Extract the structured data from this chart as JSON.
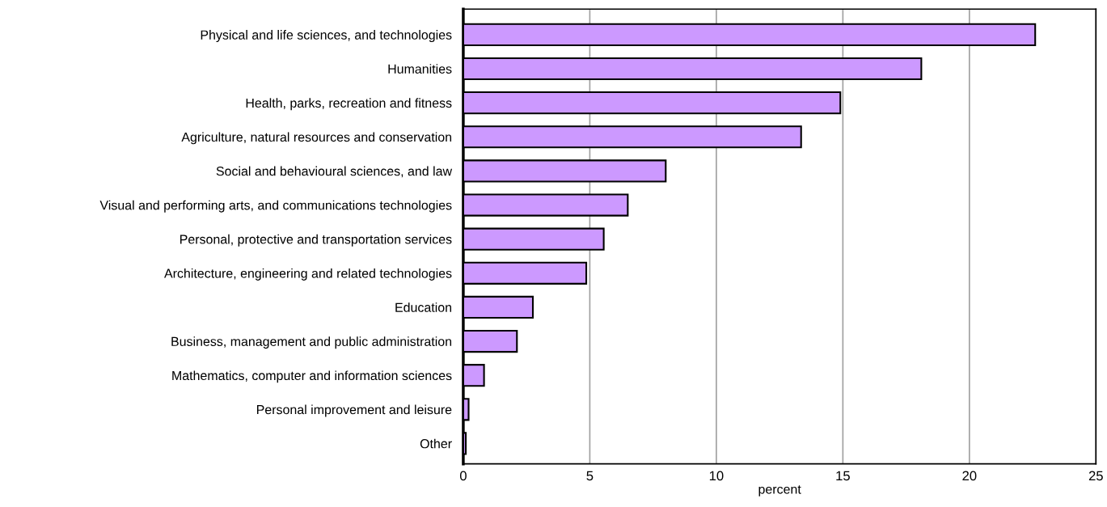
{
  "chart_data": {
    "type": "bar",
    "orientation": "horizontal",
    "xlabel": "percent",
    "categories": [
      "Physical and life sciences, and technologies",
      "Humanities",
      "Health, parks, recreation and fitness",
      "Agriculture, natural resources and conservation",
      "Social and behavioural sciences, and law",
      "Visual and performing arts, and communications technologies",
      "Personal, protective and transportation services",
      "Architecture, engineering and related technologies",
      "Education",
      "Business, management and public administration",
      "Mathematics, computer and information sciences",
      "Personal improvement and leisure",
      "Other"
    ],
    "values": [
      22.6,
      18.1,
      14.9,
      13.35,
      8.0,
      6.5,
      5.55,
      4.86,
      2.75,
      2.12,
      0.82,
      0.21,
      0.1
    ],
    "color": "#cc99ff",
    "xlim": [
      0,
      25
    ],
    "xticks": [
      0,
      5,
      10,
      15,
      20,
      25
    ],
    "grid": "x"
  }
}
